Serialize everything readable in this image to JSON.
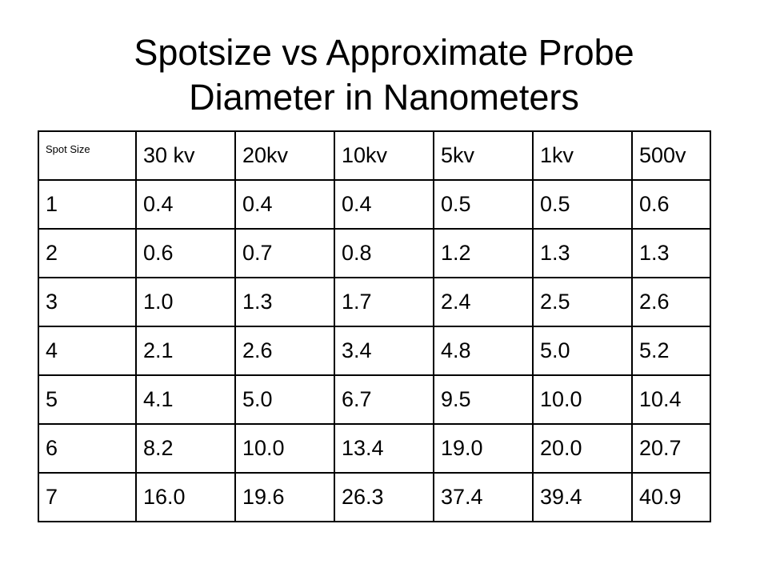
{
  "title": {
    "line1": "Spotsize vs Approximate Probe",
    "line2": "Diameter in Nanometers"
  },
  "table": {
    "header": [
      "Spot Size",
      "30 kv",
      "20kv",
      "10kv",
      "5kv",
      "1kv",
      "500v"
    ],
    "rows": [
      [
        "1",
        "0.4",
        "0.4",
        "0.4",
        "0.5",
        "0.5",
        "0.6"
      ],
      [
        "2",
        "0.6",
        "0.7",
        "0.8",
        "1.2",
        "1.3",
        "1.3"
      ],
      [
        "3",
        "1.0",
        "1.3",
        "1.7",
        "2.4",
        "2.5",
        "2.6"
      ],
      [
        "4",
        "2.1",
        "2.6",
        "3.4",
        "4.8",
        "5.0",
        "5.2"
      ],
      [
        "5",
        "4.1",
        "5.0",
        "6.7",
        "9.5",
        "10.0",
        "10.4"
      ],
      [
        "6",
        "8.2",
        "10.0",
        "13.4",
        "19.0",
        "20.0",
        "20.7"
      ],
      [
        "7",
        "16.0",
        "19.6",
        "26.3",
        "37.4",
        "39.4",
        "40.9"
      ]
    ]
  }
}
